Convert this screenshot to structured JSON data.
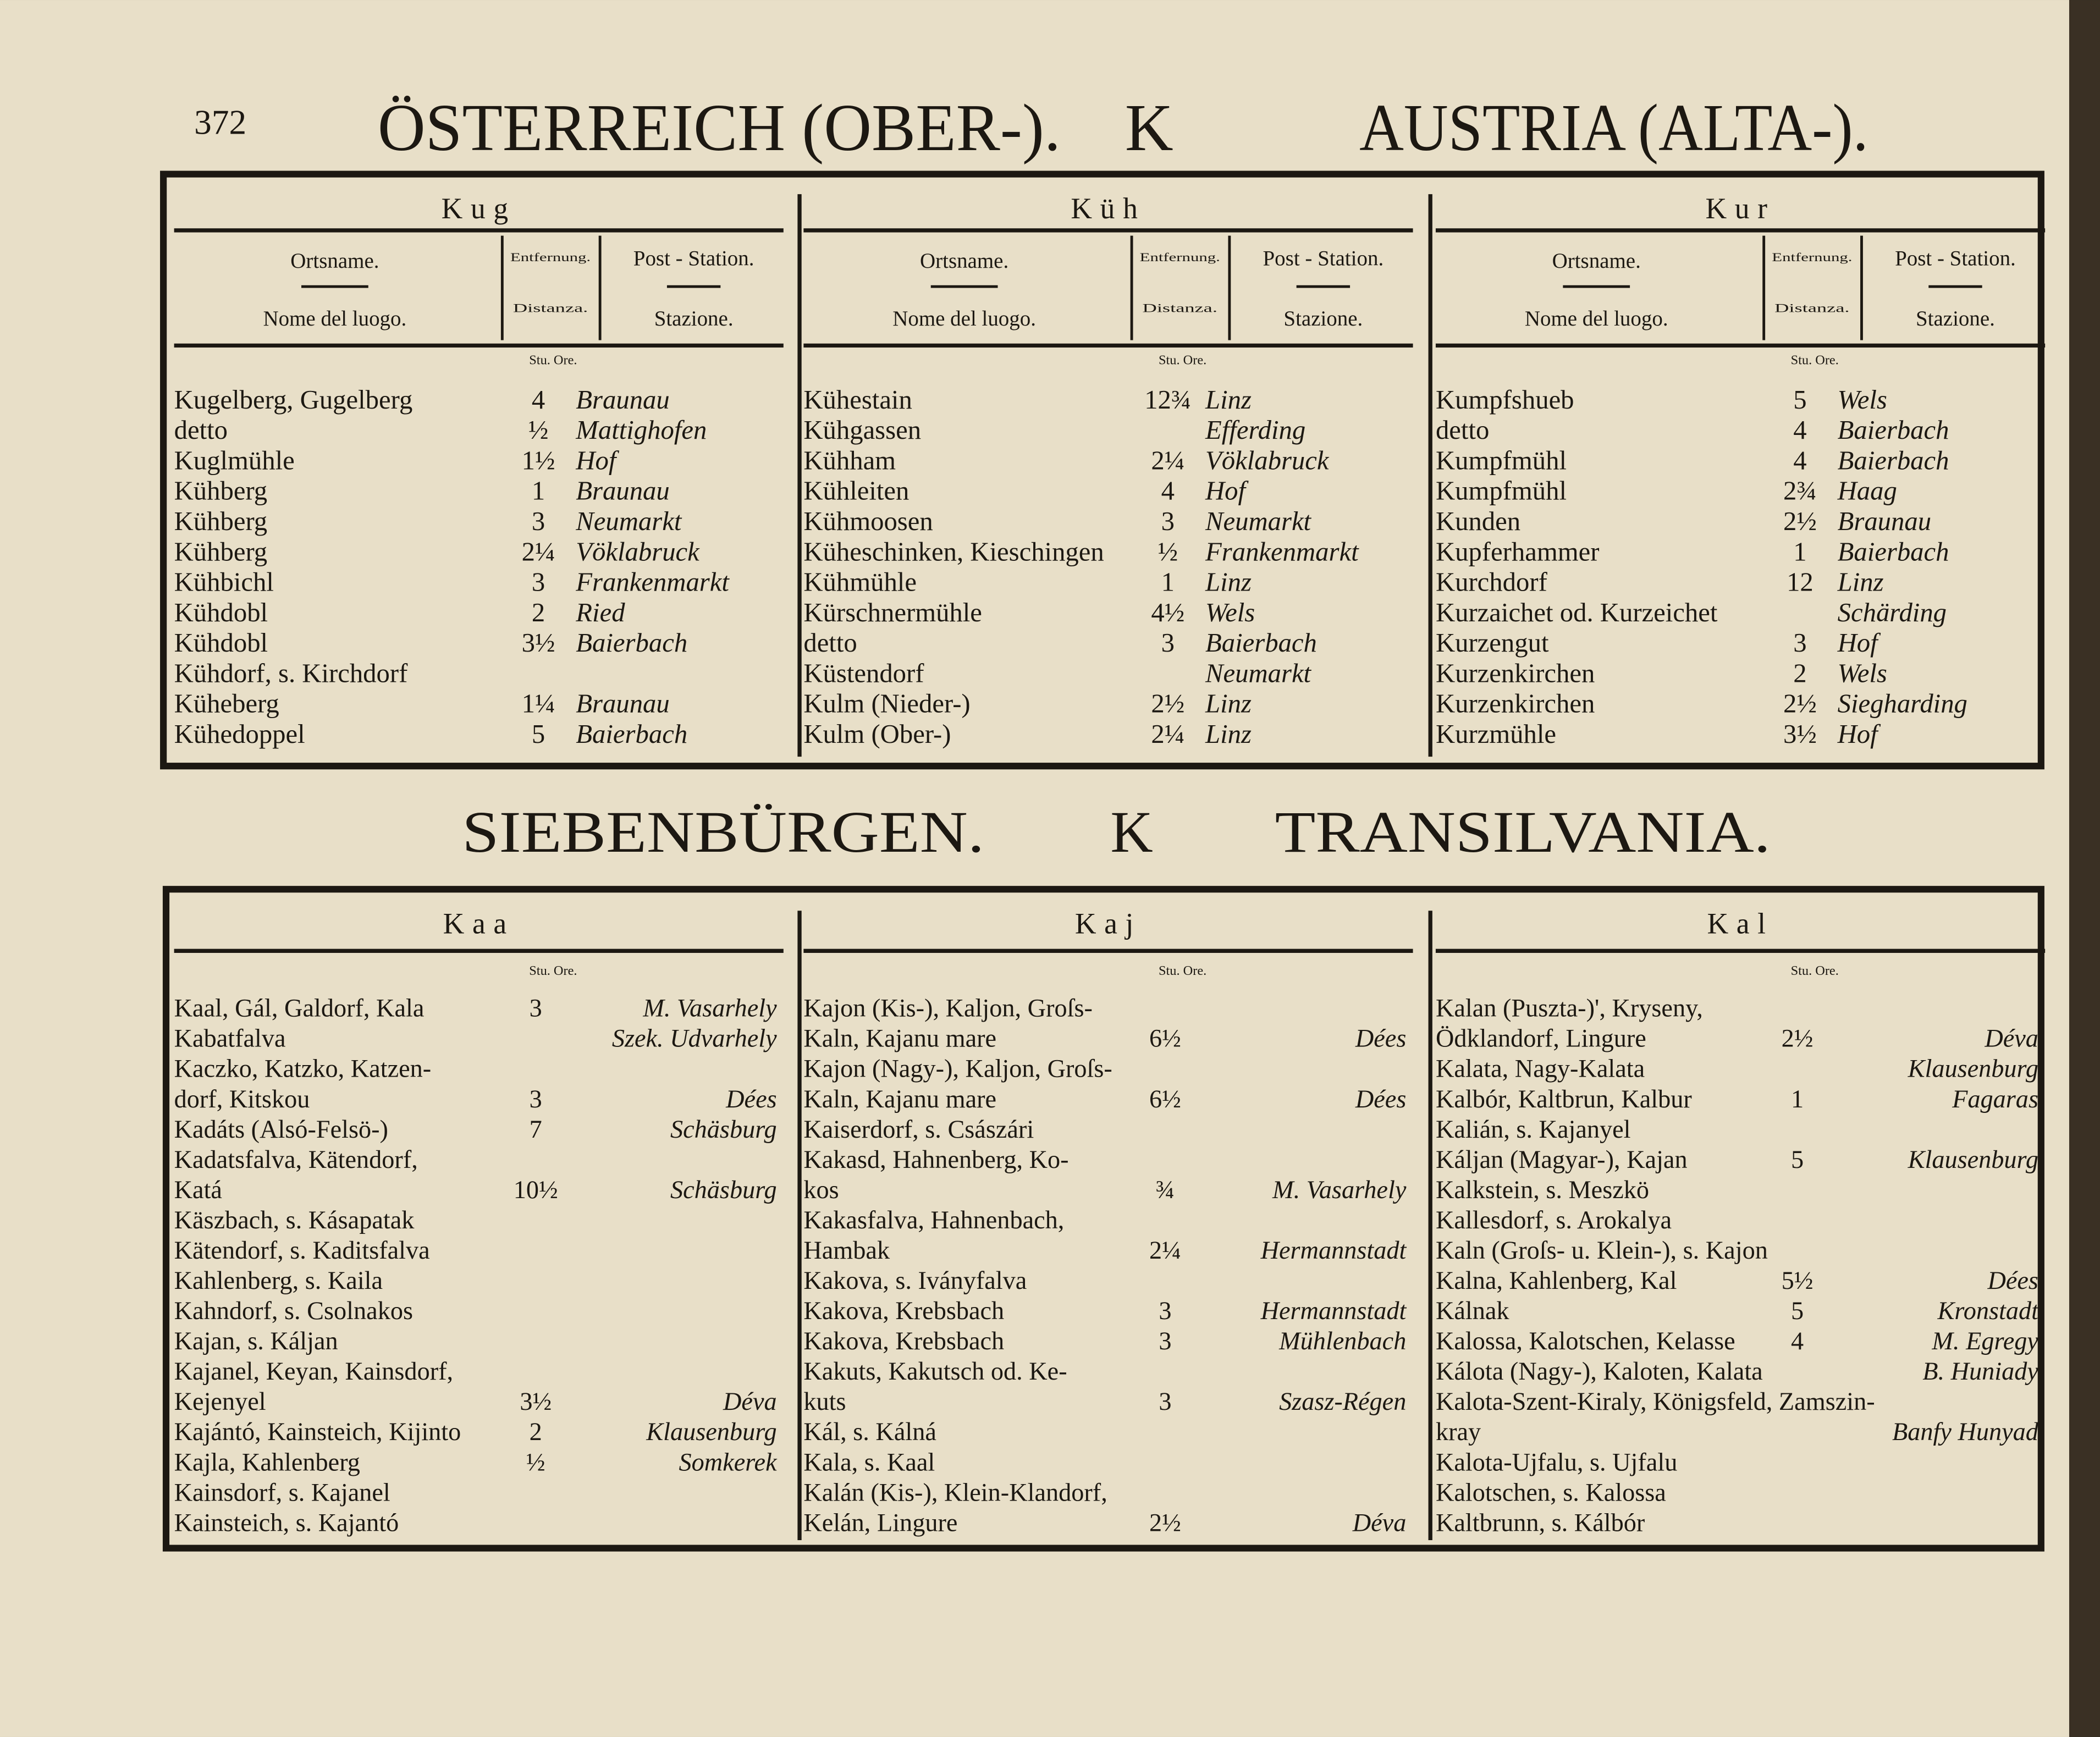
{
  "header": {
    "page_number": "372",
    "left_title": "ÖSTERREICH (OBER-).",
    "letter": "K",
    "right_title": "AUSTRIA (ALTA-)."
  },
  "top_labels": {
    "place_de": "Ortsname.",
    "place_it": "Nome del luogo.",
    "dist_de": "Entfernung.",
    "dist_it": "Distanza.",
    "station_de": "Post - Station.",
    "station_it": "Stazione.",
    "units": "Stu. Ore."
  },
  "top_sections": [
    {
      "heading": "Kug",
      "rows": [
        {
          "name": "Kugelberg, Gugelberg",
          "dist": "4",
          "station": "Braunau"
        },
        {
          "name": "detto",
          "dist": "½",
          "station": "Mattighofen"
        },
        {
          "name": "Kuglmühle",
          "dist": "1½",
          "station": "Hof"
        },
        {
          "name": "Kühberg",
          "dist": "1",
          "station": "Braunau"
        },
        {
          "name": "Kühberg",
          "dist": "3",
          "station": "Neumarkt"
        },
        {
          "name": "Kühberg",
          "dist": "2¼",
          "station": "Vöklabruck"
        },
        {
          "name": "Kühbichl",
          "dist": "3",
          "station": "Frankenmarkt"
        },
        {
          "name": "Kühdobl",
          "dist": "2",
          "station": "Ried"
        },
        {
          "name": "Kühdobl",
          "dist": "3½",
          "station": "Baierbach"
        },
        {
          "name": "Kühdorf, s. Kirchdorf"
        },
        {
          "name": "Küheberg",
          "dist": "1¼",
          "station": "Braunau"
        },
        {
          "name": "Kühedoppel",
          "dist": "5",
          "station": "Baierbach"
        }
      ]
    },
    {
      "heading": "Küh",
      "rows": [
        {
          "name": "Kühestain",
          "dist": "12¾",
          "station": "Linz"
        },
        {
          "name": "Kühgassen",
          "station": "Efferding"
        },
        {
          "name": "Kühham",
          "dist": "2¼",
          "station": "Vöklabruck"
        },
        {
          "name": "Kühleiten",
          "dist": "4",
          "station": "Hof"
        },
        {
          "name": "Kühmoosen",
          "dist": "3",
          "station": "Neumarkt"
        },
        {
          "name": "Küheschinken, Kieschingen",
          "dist": "½",
          "station": "Frankenmarkt"
        },
        {
          "name": "Kühmühle",
          "dist": "1",
          "station": "Linz"
        },
        {
          "name": "Kürschnermühle",
          "dist": "4½",
          "station": "Wels"
        },
        {
          "name": "detto",
          "dist": "3",
          "station": "Baierbach"
        },
        {
          "name": "Küstendorf",
          "station": "Neumarkt"
        },
        {
          "name": "Kulm (Nieder-)",
          "dist": "2½",
          "station": "Linz"
        },
        {
          "name": "Kulm (Ober-)",
          "dist": "2¼",
          "station": "Linz"
        }
      ]
    },
    {
      "heading": "Kur",
      "rows": [
        {
          "name": "Kumpfshueb",
          "dist": "5",
          "station": "Wels"
        },
        {
          "name": "detto",
          "dist": "4",
          "station": "Baierbach"
        },
        {
          "name": "Kumpfmühl",
          "dist": "4",
          "station": "Baierbach"
        },
        {
          "name": "Kumpfmühl",
          "dist": "2¾",
          "station": "Haag"
        },
        {
          "name": "Kunden",
          "dist": "2½",
          "station": "Braunau"
        },
        {
          "name": "Kupferhammer",
          "dist": "1",
          "station": "Baierbach"
        },
        {
          "name": "Kurchdorf",
          "dist": "12",
          "station": "Linz"
        },
        {
          "name": "Kurzaichet od. Kurzeichet",
          "station": "Schärding"
        },
        {
          "name": "Kurzengut",
          "dist": "3",
          "station": "Hof"
        },
        {
          "name": "Kurzenkirchen",
          "dist": "2",
          "station": "Wels"
        },
        {
          "name": "Kurzenkirchen",
          "dist": "2½",
          "station": "Siegharding"
        },
        {
          "name": "Kurzmühle",
          "dist": "3½",
          "station": "Hof"
        }
      ]
    }
  ],
  "middle": {
    "left_title": "SIEBENBÜRGEN.",
    "letter": "K",
    "right_title": "TRANSILVANIA."
  },
  "bottom_units": "Stu. Ore.",
  "bottom_sections": [
    {
      "heading": "Kaa",
      "rows": [
        {
          "name": "Kaal, Gál, Galdorf, Kala",
          "dist": "3",
          "station": "M. Vasarhely"
        },
        {
          "name": "Kabatfalva",
          "station": "Szek. Udvarhely"
        },
        {
          "name": "Kaczko, Katzko, Katzen-"
        },
        {
          "name": "dorf, Kitskou",
          "dist": "3",
          "station": "Dées"
        },
        {
          "name": "Kadáts (Alsó-Felsö-)",
          "dist": "7",
          "station": "Schäsburg"
        },
        {
          "name": "Kadatsfalva, Kätendorf,"
        },
        {
          "name": "Katá",
          "dist": "10½",
          "station": "Schäsburg"
        },
        {
          "name": "Käszbach, s. Kásapatak"
        },
        {
          "name": "Kätendorf, s. Kaditsfalva"
        },
        {
          "name": "Kahlenberg, s. Kaila"
        },
        {
          "name": "Kahndorf, s. Csolnakos"
        },
        {
          "name": "Kajan, s. Káljan"
        },
        {
          "name": "Kajanel, Keyan, Kainsdorf,"
        },
        {
          "name": "Kejenyel",
          "dist": "3½",
          "station": "Déva"
        },
        {
          "name": "Kajántó, Kainsteich, Kijinto",
          "dist": "2",
          "station": "Klausenburg"
        },
        {
          "name": "Kajla, Kahlenberg",
          "dist": "½",
          "station": "Somkerek"
        },
        {
          "name": "Kainsdorf, s. Kajanel"
        },
        {
          "name": "Kainsteich, s. Kajantó"
        }
      ]
    },
    {
      "heading": "Kaj",
      "rows": [
        {
          "name": "Kajon (Kis-), Kaljon, Groſs-"
        },
        {
          "name": "Kaln, Kajanu mare",
          "dist": "6½",
          "station": "Dées"
        },
        {
          "name": "Kajon (Nagy-), Kaljon, Groſs-"
        },
        {
          "name": "Kaln, Kajanu mare",
          "dist": "6½",
          "station": "Dées"
        },
        {
          "name": "Kaiserdorf, s. Császári"
        },
        {
          "name": "Kakasd, Hahnenberg, Ko-"
        },
        {
          "name": "kos",
          "dist": "¾",
          "station": "M. Vasarhely"
        },
        {
          "name": "Kakasfalva, Hahnenbach,"
        },
        {
          "name": "Hambak",
          "dist": "2¼",
          "station": "Hermannstadt"
        },
        {
          "name": "Kakova, s. Iványfalva"
        },
        {
          "name": "Kakova, Krebsbach",
          "dist": "3",
          "station": "Hermannstadt"
        },
        {
          "name": "Kakova, Krebsbach",
          "dist": "3",
          "station": "Mühlenbach"
        },
        {
          "name": "Kakuts, Kakutsch od. Ke-"
        },
        {
          "name": "kuts",
          "dist": "3",
          "station": "Szasz-Régen"
        },
        {
          "name": "Kál, s. Kálná"
        },
        {
          "name": "Kala, s. Kaal"
        },
        {
          "name": "Kalán (Kis-), Klein-Klandorf,"
        },
        {
          "name": "Kelán, Lingure",
          "dist": "2½",
          "station": "Déva"
        }
      ]
    },
    {
      "heading": "Kal",
      "rows": [
        {
          "name": "Kalan (Puszta-)', Kryseny,"
        },
        {
          "name": "Ödklandorf, Lingure",
          "dist": "2½",
          "station": "Déva"
        },
        {
          "name": "Kalata, Nagy-Kalata",
          "station": "Klausenburg"
        },
        {
          "name": "Kalbór, Kaltbrun, Kalbur",
          "dist": "1",
          "station": "Fagaras"
        },
        {
          "name": "Kalián, s. Kajanyel"
        },
        {
          "name": "Káljan (Magyar-), Kajan",
          "dist": "5",
          "station": "Klausenburg"
        },
        {
          "name": "Kalkstein, s. Meszkö"
        },
        {
          "name": "Kallesdorf, s. Arokalya"
        },
        {
          "name": "Kaln (Groſs- u. Klein-), s. Kajon"
        },
        {
          "name": "Kalna, Kahlenberg, Kal",
          "dist": "5½",
          "station": "Dées"
        },
        {
          "name": "Kálnak",
          "dist": "5",
          "station": "Kronstadt"
        },
        {
          "name": "Kalossa, Kalotschen, Kelasse",
          "dist": "4",
          "station": "M. Egregy"
        },
        {
          "name": "Kálota (Nagy-), Kaloten, Kalata",
          "station": "B. Huniady"
        },
        {
          "name": "Kalota-Szent-Kiraly, Königsfeld, Zamszin-"
        },
        {
          "name": "kray",
          "station": "Banfy Hunyad"
        },
        {
          "name": "Kalota-Ujfalu, s. Ujfalu"
        },
        {
          "name": "Kalotschen, s. Kalossa"
        },
        {
          "name": "Kaltbrunn, s. Kálbór"
        }
      ]
    }
  ]
}
